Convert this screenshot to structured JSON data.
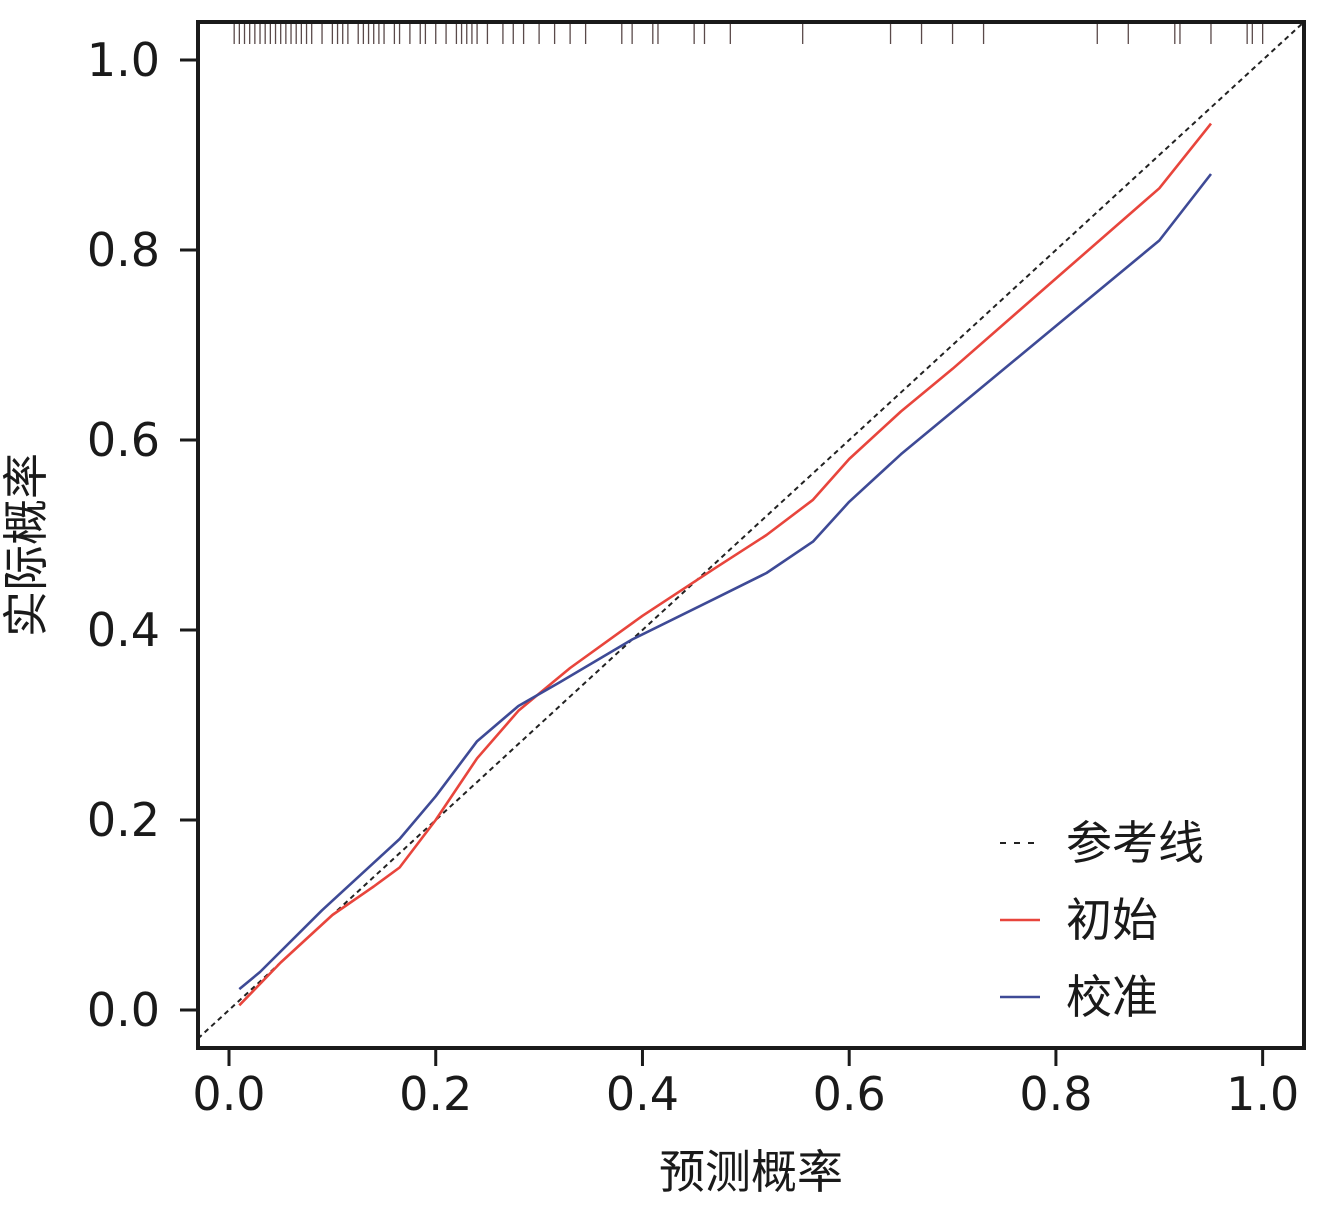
{
  "chart_data": {
    "type": "line",
    "title": "",
    "xlabel": "预测概率",
    "ylabel": "实际概率",
    "xlim": [
      -0.03,
      1.04
    ],
    "ylim": [
      -0.04,
      1.04
    ],
    "xticks": [
      0.0,
      0.2,
      0.4,
      0.6,
      0.8,
      1.0
    ],
    "yticks": [
      0.0,
      0.2,
      0.4,
      0.6,
      0.8,
      1.0
    ],
    "xtick_labels": [
      "0.0",
      "0.2",
      "0.4",
      "0.6",
      "0.8",
      "1.0"
    ],
    "ytick_labels": [
      "0.0",
      "0.2",
      "0.4",
      "0.6",
      "0.8",
      "1.0"
    ],
    "grid": false,
    "legend_position": "bottom-right",
    "series": [
      {
        "name": "参考线",
        "style": "dashed",
        "color": "#222222",
        "x": [
          -0.03,
          1.04
        ],
        "y": [
          -0.03,
          1.04
        ]
      },
      {
        "name": "初始",
        "style": "solid",
        "color": "#e8453c",
        "x": [
          0.01,
          0.05,
          0.1,
          0.14,
          0.165,
          0.2,
          0.24,
          0.28,
          0.33,
          0.4,
          0.47,
          0.52,
          0.565,
          0.6,
          0.65,
          0.7,
          0.8,
          0.9,
          0.95
        ],
        "y": [
          0.005,
          0.05,
          0.1,
          0.13,
          0.15,
          0.2,
          0.265,
          0.315,
          0.36,
          0.415,
          0.465,
          0.5,
          0.537,
          0.58,
          0.63,
          0.675,
          0.77,
          0.865,
          0.933
        ]
      },
      {
        "name": "校准",
        "style": "solid",
        "color": "#3e4a96",
        "x": [
          0.01,
          0.03,
          0.09,
          0.14,
          0.165,
          0.2,
          0.24,
          0.28,
          0.32,
          0.39,
          0.47,
          0.52,
          0.565,
          0.6,
          0.65,
          0.7,
          0.8,
          0.9,
          0.95
        ],
        "y": [
          0.022,
          0.04,
          0.105,
          0.155,
          0.18,
          0.225,
          0.283,
          0.32,
          0.345,
          0.39,
          0.433,
          0.46,
          0.493,
          0.535,
          0.585,
          0.63,
          0.72,
          0.81,
          0.88
        ]
      }
    ],
    "rug": {
      "position": "top",
      "color": "#5a4a4a",
      "x": [
        0.005,
        0.01,
        0.015,
        0.02,
        0.025,
        0.03,
        0.035,
        0.04,
        0.045,
        0.05,
        0.055,
        0.06,
        0.065,
        0.07,
        0.075,
        0.08,
        0.09,
        0.1,
        0.105,
        0.11,
        0.115,
        0.125,
        0.13,
        0.135,
        0.14,
        0.145,
        0.15,
        0.16,
        0.165,
        0.175,
        0.185,
        0.19,
        0.2,
        0.21,
        0.22,
        0.225,
        0.23,
        0.235,
        0.24,
        0.25,
        0.265,
        0.275,
        0.285,
        0.3,
        0.315,
        0.33,
        0.345,
        0.38,
        0.39,
        0.41,
        0.415,
        0.45,
        0.46,
        0.485,
        0.555,
        0.64,
        0.67,
        0.7,
        0.73,
        0.84,
        0.87,
        0.915,
        0.92,
        0.95,
        0.985,
        0.99,
        1.0
      ]
    }
  }
}
